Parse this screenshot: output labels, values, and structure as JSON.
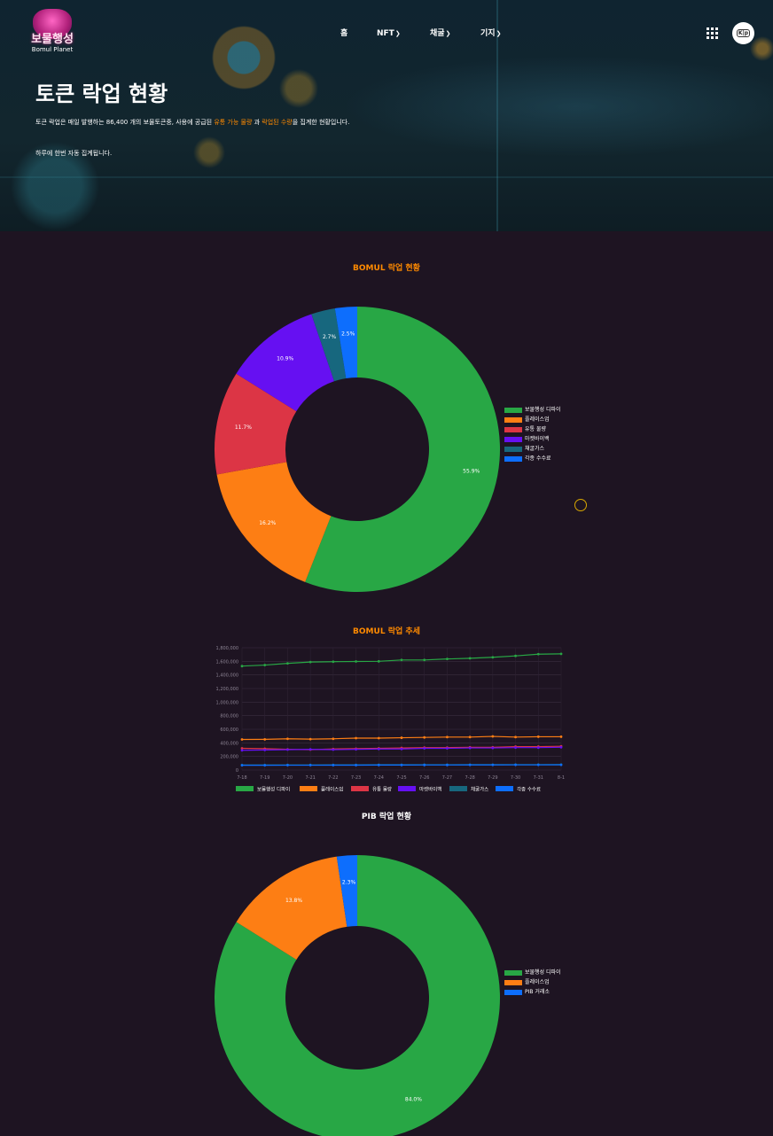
{
  "header": {
    "logo_text": "보물행성",
    "logo_sub": "Bomul Planet",
    "nav": [
      {
        "label": "홈",
        "chevron": false
      },
      {
        "label": "NFT",
        "chevron": true
      },
      {
        "label": "채굴",
        "chevron": true
      },
      {
        "label": "기지",
        "chevron": true
      }
    ],
    "apps_icon": "grid-icon",
    "lang_label": "K|p"
  },
  "hero": {
    "title": "토큰 락업 현황",
    "desc_part1": "토큰 락업은 매일 발행하는 86,400 개의 보물토큰중, 사용에 공급된 ",
    "desc_hl1": "유통 가능 물량",
    "desc_part2": " 과 ",
    "desc_hl2": "락업된 수량",
    "desc_part3": "을 집계한 현황입니다.",
    "note": "하루에 한번 자동 집계됩니다."
  },
  "colors": {
    "green": "#28a745",
    "orange": "#fd7e14",
    "red": "#dc3545",
    "purple": "#6610f2",
    "teal": "#17677e",
    "blue": "#0d6efd",
    "title_orange": "#ff8a00"
  },
  "chart_data": [
    {
      "type": "pie",
      "title": "BOMUL 락업 현황",
      "categories": [
        "보물행성 디파이",
        "플레이스업",
        "유통 물량",
        "마켓바이백",
        "채굴가스",
        "각종 수수료"
      ],
      "values": [
        55.9,
        16.2,
        11.7,
        10.9,
        2.7,
        2.5
      ],
      "labels": [
        "55.9%",
        "16.2%",
        "11.7%",
        "10.9%",
        "2.7%",
        "2.5%"
      ],
      "colors": [
        "#28a745",
        "#fd7e14",
        "#dc3545",
        "#6610f2",
        "#17677e",
        "#0d6efd"
      ],
      "legend": "right"
    },
    {
      "type": "line",
      "title": "BOMUL 락업 추세",
      "x": [
        "7-18",
        "7-19",
        "7-20",
        "7-21",
        "7-22",
        "7-23",
        "7-24",
        "7-25",
        "7-26",
        "7-27",
        "7-28",
        "7-29",
        "7-30",
        "7-31",
        "8-1"
      ],
      "yticks": [
        "0",
        "200,000",
        "400,000",
        "600,000",
        "800,000",
        "1,000,000",
        "1,200,000",
        "1,400,000",
        "1,600,000",
        "1,800,000"
      ],
      "ylim": [
        0,
        1800000
      ],
      "grid": true,
      "legend": "bottom",
      "series": [
        {
          "name": "보물행성 디파이",
          "color": "#28a745",
          "values": [
            1530000,
            1545000,
            1570000,
            1590000,
            1595000,
            1598000,
            1600000,
            1620000,
            1620000,
            1635000,
            1645000,
            1660000,
            1680000,
            1705000,
            1710000
          ]
        },
        {
          "name": "플레이스업",
          "color": "#fd7e14",
          "values": [
            450000,
            452000,
            460000,
            455000,
            460000,
            470000,
            470000,
            475000,
            480000,
            485000,
            485000,
            495000,
            485000,
            490000,
            490000
          ]
        },
        {
          "name": "유통 물량",
          "color": "#dc3545",
          "values": [
            320000,
            315000,
            305000,
            300000,
            310000,
            315000,
            320000,
            325000,
            330000,
            330000,
            335000,
            335000,
            345000,
            345000,
            350000
          ]
        },
        {
          "name": "마켓바이백",
          "color": "#6610f2",
          "values": [
            290000,
            295000,
            300000,
            305000,
            300000,
            305000,
            310000,
            310000,
            320000,
            320000,
            325000,
            325000,
            330000,
            330000,
            335000
          ]
        },
        {
          "name": "채굴가스",
          "color": "#17677e",
          "values": [
            75000,
            75000,
            76000,
            76000,
            77000,
            77000,
            78000,
            78000,
            79000,
            79000,
            80000,
            80000,
            81000,
            81000,
            82000
          ]
        },
        {
          "name": "각종 수수료",
          "color": "#0d6efd",
          "values": [
            70000,
            70000,
            71000,
            71000,
            72000,
            72000,
            73000,
            73000,
            74000,
            74000,
            75000,
            75000,
            76000,
            76000,
            77000
          ]
        }
      ]
    },
    {
      "type": "pie",
      "title": "PIB 락업 현황",
      "categories": [
        "보물행성 디파이",
        "플레이스업",
        "PIB 거래소"
      ],
      "values": [
        84.0,
        13.8,
        2.3
      ],
      "labels": [
        "84.0%",
        "13.8%",
        "2.3%"
      ],
      "colors": [
        "#28a745",
        "#fd7e14",
        "#0d6efd"
      ],
      "legend": "right"
    }
  ]
}
